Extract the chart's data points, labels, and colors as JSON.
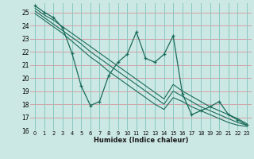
{
  "xlabel": "Humidex (Indice chaleur)",
  "bg_color": "#cce8e4",
  "grid_color_h": "#d4a0a8",
  "grid_color_v": "#88c8c0",
  "line_color": "#1a6b5a",
  "xlim": [
    -0.5,
    23.5
  ],
  "ylim": [
    16,
    25.7
  ],
  "yticks": [
    16,
    17,
    18,
    19,
    20,
    21,
    22,
    23,
    24,
    25
  ],
  "xticks": [
    0,
    1,
    2,
    3,
    4,
    5,
    6,
    7,
    8,
    9,
    10,
    11,
    12,
    13,
    14,
    15,
    16,
    17,
    18,
    19,
    20,
    21,
    22,
    23
  ],
  "x": [
    0,
    1,
    2,
    3,
    4,
    5,
    6,
    7,
    8,
    9,
    10,
    11,
    12,
    13,
    14,
    15,
    16,
    17,
    18,
    19,
    20,
    21,
    22,
    23
  ],
  "y_main": [
    25.5,
    25.0,
    24.6,
    23.8,
    21.9,
    19.4,
    17.9,
    18.2,
    20.2,
    21.2,
    21.8,
    23.5,
    21.5,
    21.2,
    21.8,
    23.2,
    18.8,
    17.2,
    17.5,
    17.8,
    18.2,
    17.2,
    16.8,
    16.4
  ],
  "y_line1": [
    25.3,
    24.8,
    24.4,
    23.9,
    23.4,
    22.9,
    22.4,
    21.9,
    21.4,
    20.9,
    20.4,
    19.9,
    19.4,
    18.9,
    18.4,
    19.5,
    19.0,
    18.6,
    18.2,
    17.8,
    17.5,
    17.2,
    16.9,
    16.5
  ],
  "y_line2": [
    25.1,
    24.6,
    24.1,
    23.6,
    23.1,
    22.6,
    22.0,
    21.5,
    21.0,
    20.5,
    20.0,
    19.5,
    19.0,
    18.5,
    18.0,
    19.0,
    18.6,
    18.2,
    17.8,
    17.5,
    17.2,
    16.9,
    16.6,
    16.4
  ],
  "y_line3": [
    24.9,
    24.4,
    23.9,
    23.4,
    22.8,
    22.2,
    21.6,
    21.1,
    20.5,
    20.0,
    19.5,
    19.0,
    18.5,
    18.0,
    17.6,
    18.5,
    18.2,
    17.8,
    17.5,
    17.2,
    16.9,
    16.6,
    16.4,
    16.3
  ]
}
